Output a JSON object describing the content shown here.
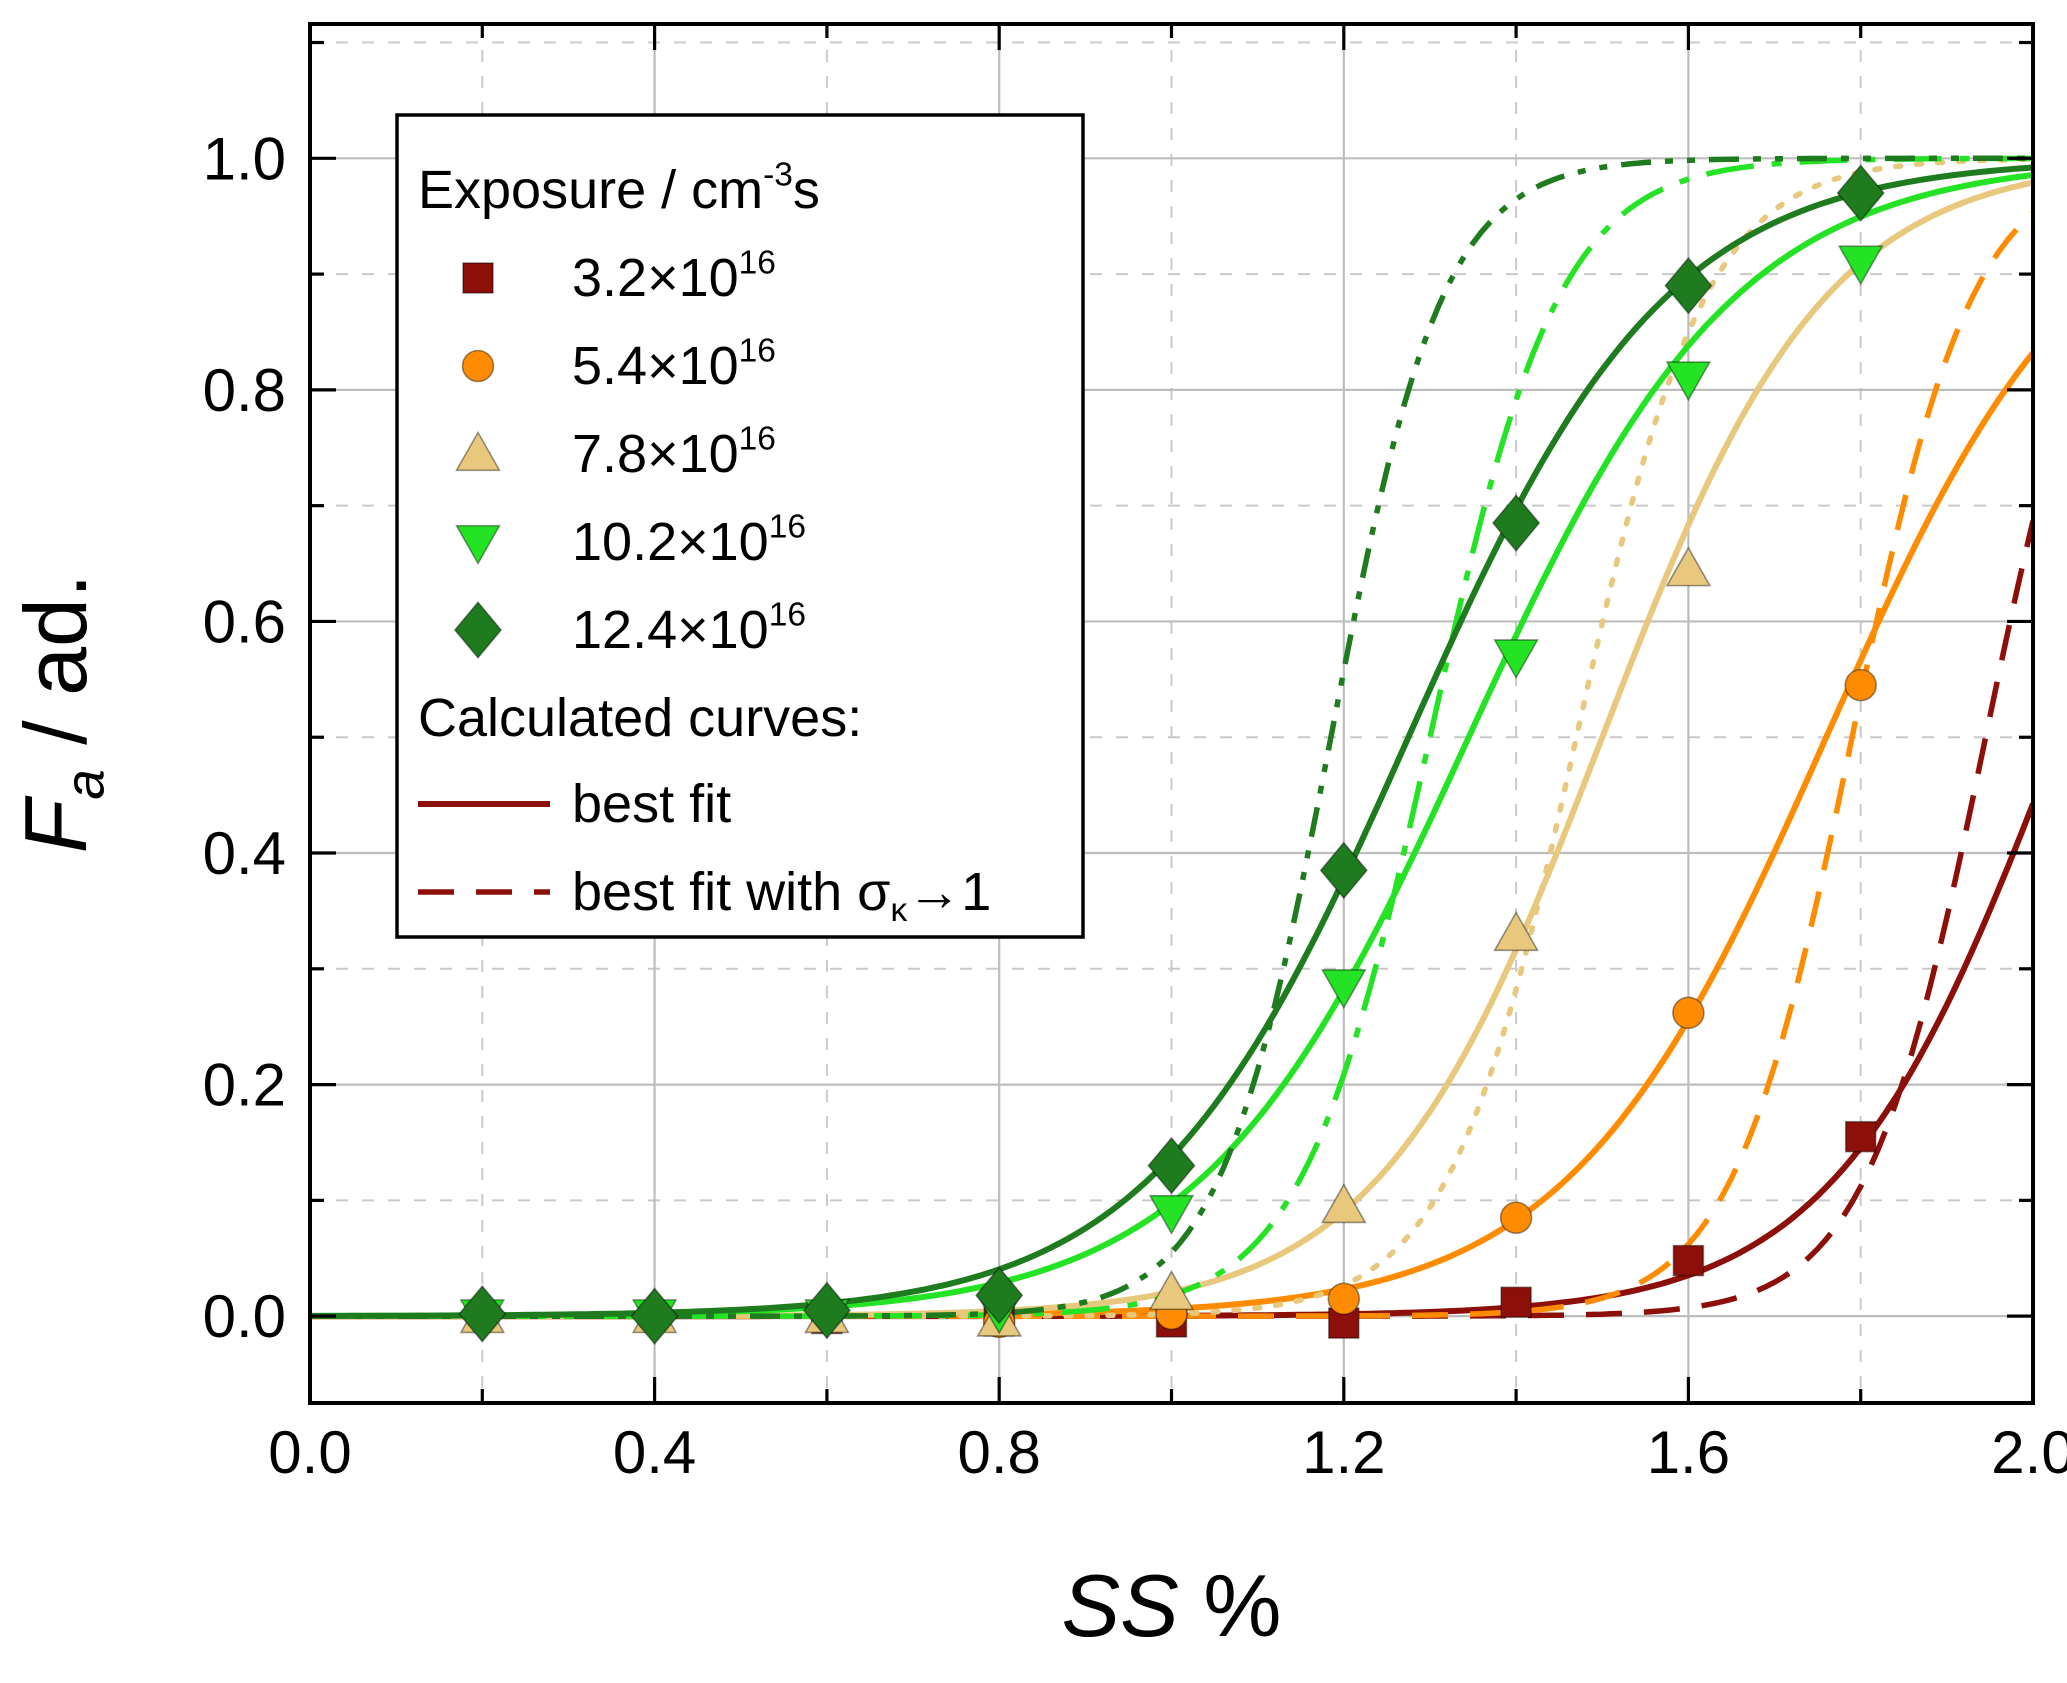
{
  "figure": {
    "background": "#ffffff",
    "frame_color": "#000000"
  },
  "chart_data": {
    "type": "scatter",
    "title": "",
    "xlabel": "SS %",
    "ylabel": "Fa / ad.",
    "xlabel_segments": [
      {
        "t": "SS",
        "italic": true
      },
      {
        "t": " %"
      }
    ],
    "ylabel_segments": [
      {
        "t": "F",
        "italic": true
      },
      {
        "t": "a",
        "sub": true,
        "italic": true
      },
      {
        "t": " / ad."
      }
    ],
    "xlim": [
      0.0,
      2.0
    ],
    "ylim": [
      -0.075,
      1.116
    ],
    "xticks": [
      "0.0",
      "0.4",
      "0.8",
      "1.2",
      "1.6",
      "2.0"
    ],
    "xtick_values": [
      0.0,
      0.4,
      0.8,
      1.2,
      1.6,
      2.0
    ],
    "x_minor_step": 0.2,
    "yticks": [
      "0.0",
      "0.2",
      "0.4",
      "0.6",
      "0.8",
      "1.0"
    ],
    "ytick_values": [
      0.0,
      0.2,
      0.4,
      0.6,
      0.8,
      1.0
    ],
    "y_minor_step": 0.1,
    "grid": {
      "major_color": "#bdbdbd",
      "minor_color": "#c9c9c9",
      "major_on": true,
      "minor_on": true
    },
    "legend": {
      "position": "top-left",
      "title_segments": [
        {
          "t": "Exposure / cm"
        },
        {
          "t": "-3",
          "sup": true
        },
        {
          "t": "s"
        }
      ],
      "calculated_label": "Calculated curves:",
      "best_fit_label_segments": [
        {
          "t": "best fit"
        }
      ],
      "sigma_fit_label_segments": [
        {
          "t": "best fit with "
        },
        {
          "t": "σ"
        },
        {
          "t": "κ",
          "sub": true
        },
        {
          "t": "→1"
        }
      ],
      "sample_color": "#8c1009"
    },
    "series": [
      {
        "id": "exp-3-2e16",
        "label_segments": [
          {
            "t": "3.2×10"
          },
          {
            "t": "16",
            "sup": true
          }
        ],
        "color": "#8c1009",
        "marker": "square",
        "points": [
          [
            0.2,
            0.0
          ],
          [
            0.4,
            0.0
          ],
          [
            0.6,
            -0.002
          ],
          [
            0.8,
            -0.004
          ],
          [
            1.0,
            -0.005
          ],
          [
            1.2,
            -0.006
          ],
          [
            1.4,
            0.012
          ],
          [
            1.6,
            0.048
          ],
          [
            1.8,
            0.155
          ]
        ],
        "best_fit": {
          "x0": 2.03,
          "k": 0.13
        },
        "sigma_fit": {
          "x0": 1.945,
          "k": 0.07
        },
        "sigma_dash": "36 22",
        "sigma_linecap": "butt"
      },
      {
        "id": "exp-5-4e16",
        "label_segments": [
          {
            "t": "5.4×10"
          },
          {
            "t": "16",
            "sup": true
          }
        ],
        "color": "#ff8c00",
        "marker": "circle",
        "points": [
          [
            0.2,
            0.0
          ],
          [
            0.4,
            0.0
          ],
          [
            0.6,
            0.0
          ],
          [
            0.8,
            -0.005
          ],
          [
            1.0,
            0.002
          ],
          [
            1.2,
            0.015
          ],
          [
            1.4,
            0.085
          ],
          [
            1.6,
            0.262
          ],
          [
            1.8,
            0.545
          ]
        ],
        "best_fit": {
          "x0": 1.76,
          "k": 0.15
        },
        "sigma_fit": {
          "x0": 1.79,
          "k": 0.07
        },
        "sigma_dash": "36 22",
        "sigma_linecap": "butt"
      },
      {
        "id": "exp-7-8e16",
        "label_segments": [
          {
            "t": "7.8×10"
          },
          {
            "t": "16",
            "sup": true
          }
        ],
        "color": "#e8c87d",
        "marker": "triangle-up",
        "points": [
          [
            0.2,
            0.0
          ],
          [
            0.4,
            0.0
          ],
          [
            0.6,
            0.0
          ],
          [
            0.8,
            -0.003
          ],
          [
            1.0,
            0.02
          ],
          [
            1.2,
            0.095
          ],
          [
            1.4,
            0.33
          ],
          [
            1.6,
            0.645
          ]
        ],
        "best_fit": {
          "x0": 1.5,
          "k": 0.13
        },
        "sigma_fit": {
          "x0": 1.47,
          "k": 0.075
        },
        "sigma_dash": "5 16",
        "sigma_linecap": "round"
      },
      {
        "id": "exp-10-2e16",
        "label_segments": [
          {
            "t": "10.2×10"
          },
          {
            "t": "16",
            "sup": true
          }
        ],
        "color": "#24e324",
        "marker": "triangle-down",
        "points": [
          [
            0.2,
            0.0
          ],
          [
            0.4,
            0.0
          ],
          [
            0.6,
            0.0
          ],
          [
            0.8,
            0.004
          ],
          [
            1.0,
            0.09
          ],
          [
            1.2,
            0.285
          ],
          [
            1.4,
            0.57
          ],
          [
            1.6,
            0.81
          ],
          [
            1.8,
            0.91
          ]
        ],
        "best_fit": {
          "x0": 1.345,
          "k": 0.155
        },
        "sigma_fit": {
          "x0": 1.3,
          "k": 0.075
        },
        "sigma_dash": "48 18 10 18",
        "sigma_linecap": "butt"
      },
      {
        "id": "exp-12-4e16",
        "label_segments": [
          {
            "t": "12.4×10"
          },
          {
            "t": "16",
            "sup": true
          }
        ],
        "color": "#1e7b1e",
        "marker": "diamond",
        "points": [
          [
            0.2,
            0.002
          ],
          [
            0.4,
            0.0
          ],
          [
            0.6,
            0.005
          ],
          [
            0.8,
            0.018
          ],
          [
            1.0,
            0.13
          ],
          [
            1.2,
            0.385
          ],
          [
            1.4,
            0.685
          ],
          [
            1.6,
            0.89
          ],
          [
            1.8,
            0.97
          ]
        ],
        "best_fit": {
          "x0": 1.275,
          "k": 0.15
        },
        "sigma_fit": {
          "x0": 1.185,
          "k": 0.065
        },
        "sigma_dash": "30 14 8 14 8 14",
        "sigma_linecap": "butt"
      }
    ]
  }
}
